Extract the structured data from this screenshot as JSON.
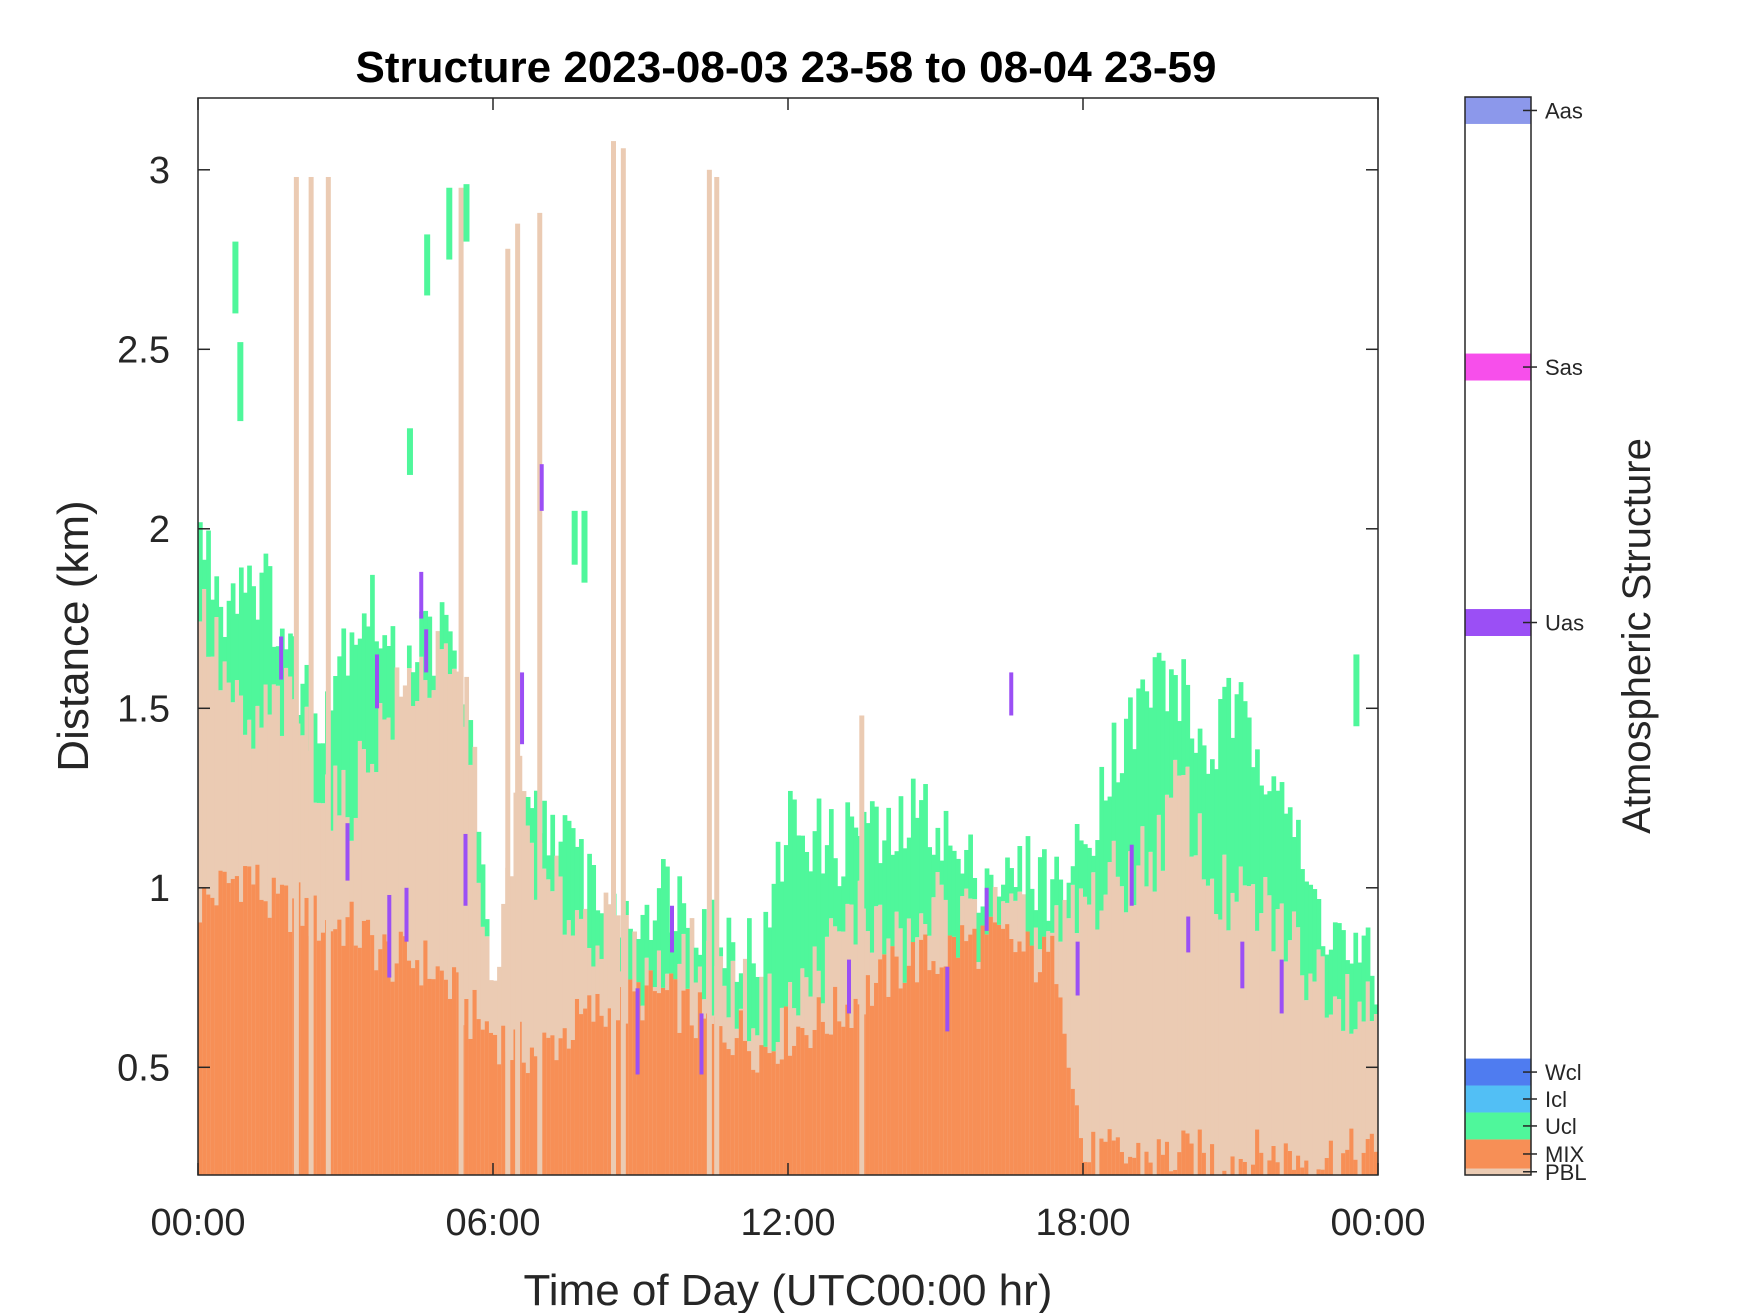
{
  "chart_data": {
    "type": "heatmap",
    "title": "Structure 2023-08-03 23-58 to 08-04 23-59",
    "xlabel": "Time of Day (UTC00:00 hr)",
    "ylabel": "Distance (km)",
    "xlim_hours": [
      0,
      24
    ],
    "ylim_km": [
      0.2,
      3.2
    ],
    "x_ticks": [
      {
        "hour": 0,
        "label": "00:00"
      },
      {
        "hour": 6,
        "label": "06:00"
      },
      {
        "hour": 12,
        "label": "12:00"
      },
      {
        "hour": 18,
        "label": "18:00"
      },
      {
        "hour": 24,
        "label": "00:00"
      }
    ],
    "y_ticks": [
      {
        "km": 0.5,
        "label": "0.5"
      },
      {
        "km": 1.0,
        "label": "1"
      },
      {
        "km": 1.5,
        "label": "1.5"
      },
      {
        "km": 2.0,
        "label": "2"
      },
      {
        "km": 2.5,
        "label": "2.5"
      },
      {
        "km": 3.0,
        "label": "3"
      }
    ],
    "grid": false,
    "colorbar": {
      "title": "Atmospheric Structure",
      "categories": [
        {
          "label": "PBL",
          "color": "#EBCBB3"
        },
        {
          "label": "MIX",
          "color": "#F78F56"
        },
        {
          "label": "Ucl",
          "color": "#4FF79B"
        },
        {
          "label": "Icl",
          "color": "#52BFF5"
        },
        {
          "label": "Wcl",
          "color": "#4F7CF0"
        },
        {
          "label": "Uas",
          "color": "#9B4FF5"
        },
        {
          "label": "Sas",
          "color": "#F74FEB"
        },
        {
          "label": "Aas",
          "color": "#8C98EB"
        }
      ]
    },
    "profile_hours": [
      0,
      0.5,
      1,
      1.5,
      2,
      2.5,
      3,
      3.5,
      4,
      4.5,
      5,
      5.5,
      6,
      6.5,
      7,
      7.5,
      8,
      8.5,
      9,
      9.5,
      10,
      10.5,
      11,
      11.5,
      12,
      12.5,
      13,
      13.5,
      14,
      14.5,
      15,
      15.5,
      16,
      16.5,
      17,
      17.5,
      18,
      18.5,
      19,
      19.5,
      20,
      20.5,
      21,
      21.5,
      22,
      22.5,
      23,
      23.5,
      24
    ],
    "mix_top_km": [
      0.95,
      1.0,
      1.05,
      0.95,
      0.95,
      0.9,
      0.9,
      0.85,
      0.8,
      0.8,
      0.75,
      0.65,
      0.6,
      0.55,
      0.55,
      0.6,
      0.65,
      0.65,
      0.7,
      0.7,
      0.65,
      0.6,
      0.6,
      0.55,
      0.6,
      0.62,
      0.65,
      0.7,
      0.75,
      0.8,
      0.8,
      0.85,
      0.85,
      0.85,
      0.8,
      0.8,
      0.25,
      0.25,
      0.25,
      0.25,
      0.25,
      0.25,
      0.25,
      0.25,
      0.25,
      0.25,
      0.25,
      0.25,
      0.25
    ],
    "pbl_top_km": [
      1.8,
      1.6,
      1.4,
      1.5,
      1.5,
      1.3,
      1.2,
      1.4,
      1.5,
      1.6,
      1.6,
      1.5,
      0.6,
      1.3,
      1.0,
      0.95,
      0.9,
      0.85,
      0.75,
      0.75,
      0.8,
      0.75,
      0.7,
      0.65,
      0.65,
      0.75,
      0.85,
      0.95,
      0.85,
      0.8,
      0.95,
      0.9,
      0.9,
      0.9,
      0.85,
      0.85,
      0.95,
      1.0,
      1.05,
      1.1,
      1.3,
      1.05,
      0.95,
      0.95,
      0.9,
      0.8,
      0.75,
      0.7,
      0.65
    ],
    "ucl_top_km": [
      2.0,
      1.8,
      1.9,
      1.8,
      1.6,
      1.5,
      1.7,
      1.8,
      1.6,
      1.7,
      1.7,
      1.5,
      0.6,
      1.15,
      1.2,
      1.1,
      1.05,
      0.85,
      0.95,
      1.0,
      0.95,
      0.9,
      0.85,
      0.8,
      1.2,
      1.15,
      1.1,
      1.2,
      1.1,
      1.2,
      1.2,
      1.05,
      1.05,
      1.0,
      1.05,
      1.0,
      1.1,
      1.35,
      1.45,
      1.6,
      1.55,
      1.35,
      1.5,
      1.4,
      1.35,
      1.0,
      0.9,
      0.8,
      0.75
    ],
    "ucl_mid_km": [
      0,
      0,
      0,
      0,
      0,
      0,
      0,
      0,
      0,
      0,
      0,
      0,
      0,
      0,
      0,
      0,
      0,
      0,
      0,
      0,
      0,
      0,
      0,
      0,
      0,
      0,
      0,
      0,
      0,
      0,
      0,
      0,
      0,
      0,
      0,
      0,
      0,
      0,
      0,
      0,
      0,
      0,
      0,
      0,
      0,
      0,
      0,
      0,
      0
    ],
    "pbl_spikes": [
      {
        "hour": 1.95,
        "top_km": 2.98
      },
      {
        "hour": 2.25,
        "top_km": 2.98
      },
      {
        "hour": 2.6,
        "top_km": 2.98
      },
      {
        "hour": 5.3,
        "top_km": 2.95
      },
      {
        "hour": 6.25,
        "top_km": 2.78
      },
      {
        "hour": 6.45,
        "top_km": 2.85
      },
      {
        "hour": 6.9,
        "top_km": 2.88
      },
      {
        "hour": 8.4,
        "top_km": 3.08
      },
      {
        "hour": 8.6,
        "top_km": 3.06
      },
      {
        "hour": 10.35,
        "top_km": 3.0
      },
      {
        "hour": 10.5,
        "top_km": 2.98
      },
      {
        "hour": 13.45,
        "top_km": 1.48
      }
    ],
    "ucl_patches": [
      {
        "hour": 0.7,
        "bottom_km": 2.6,
        "top_km": 2.8
      },
      {
        "hour": 0.8,
        "bottom_km": 2.3,
        "top_km": 2.52
      },
      {
        "hour": 4.6,
        "bottom_km": 2.65,
        "top_km": 2.82
      },
      {
        "hour": 5.05,
        "bottom_km": 2.75,
        "top_km": 2.95
      },
      {
        "hour": 5.4,
        "bottom_km": 2.8,
        "top_km": 2.96
      },
      {
        "hour": 4.25,
        "bottom_km": 2.15,
        "top_km": 2.28
      },
      {
        "hour": 7.6,
        "bottom_km": 1.9,
        "top_km": 2.05
      },
      {
        "hour": 7.8,
        "bottom_km": 1.85,
        "top_km": 2.05
      },
      {
        "hour": 23.5,
        "bottom_km": 1.45,
        "top_km": 1.65
      }
    ],
    "uas_marks": [
      {
        "hour": 1.65,
        "bottom_km": 1.58,
        "top_km": 1.7
      },
      {
        "hour": 3.0,
        "bottom_km": 1.02,
        "top_km": 1.18
      },
      {
        "hour": 3.6,
        "bottom_km": 1.5,
        "top_km": 1.65
      },
      {
        "hour": 3.85,
        "bottom_km": 0.75,
        "top_km": 0.98
      },
      {
        "hour": 4.2,
        "bottom_km": 0.85,
        "top_km": 1.0
      },
      {
        "hour": 4.5,
        "bottom_km": 1.75,
        "top_km": 1.88
      },
      {
        "hour": 4.6,
        "bottom_km": 1.6,
        "top_km": 1.72
      },
      {
        "hour": 5.4,
        "bottom_km": 0.95,
        "top_km": 1.15
      },
      {
        "hour": 6.55,
        "bottom_km": 1.4,
        "top_km": 1.6
      },
      {
        "hour": 6.95,
        "bottom_km": 2.05,
        "top_km": 2.18
      },
      {
        "hour": 8.9,
        "bottom_km": 0.48,
        "top_km": 0.72
      },
      {
        "hour": 9.6,
        "bottom_km": 0.82,
        "top_km": 0.95
      },
      {
        "hour": 10.2,
        "bottom_km": 0.48,
        "top_km": 0.65
      },
      {
        "hour": 13.2,
        "bottom_km": 0.65,
        "top_km": 0.8
      },
      {
        "hour": 15.2,
        "bottom_km": 0.6,
        "top_km": 0.78
      },
      {
        "hour": 16.0,
        "bottom_km": 0.88,
        "top_km": 1.0
      },
      {
        "hour": 16.5,
        "bottom_km": 1.48,
        "top_km": 1.6
      },
      {
        "hour": 17.85,
        "bottom_km": 0.7,
        "top_km": 0.85
      },
      {
        "hour": 18.95,
        "bottom_km": 0.95,
        "top_km": 1.12
      },
      {
        "hour": 20.1,
        "bottom_km": 0.82,
        "top_km": 0.92
      },
      {
        "hour": 21.2,
        "bottom_km": 0.72,
        "top_km": 0.85
      },
      {
        "hour": 22.0,
        "bottom_km": 0.65,
        "top_km": 0.8
      }
    ]
  }
}
